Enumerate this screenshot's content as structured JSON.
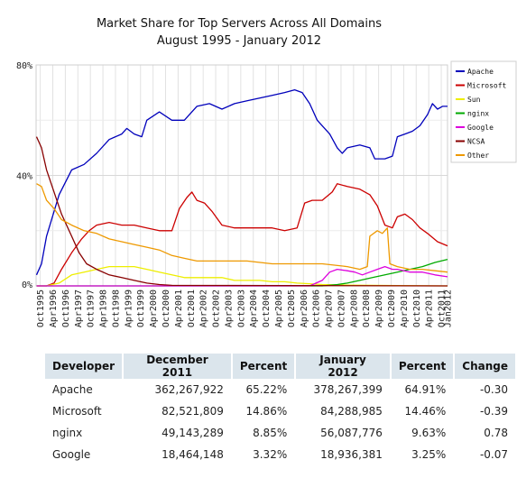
{
  "chart_data": {
    "type": "line",
    "title": "Market Share for Top Servers Across All Domains",
    "subtitle": "August 1995 - January 2012",
    "y_ticks": [
      "0%",
      "40%",
      "80%"
    ],
    "ylim": [
      0,
      80
    ],
    "x_ticks": [
      "Oct1995",
      "Apr1996",
      "Oct1996",
      "Apr1997",
      "Oct1997",
      "Apr1998",
      "Oct1998",
      "Apr1999",
      "Oct1999",
      "Apr2000",
      "Oct2000",
      "Apr2001",
      "Oct2001",
      "Apr2002",
      "Oct2002",
      "Apr2003",
      "Oct2003",
      "Apr2004",
      "Oct2004",
      "Apr2005",
      "Oct2005",
      "Apr2006",
      "Oct2006",
      "Apr2007",
      "Oct2007",
      "Apr2008",
      "Oct2008",
      "Apr2009",
      "Oct2009",
      "Apr2010",
      "Oct2010",
      "Apr2011",
      "Oct2011",
      "Jan2012"
    ],
    "x_range": [
      "1995-08",
      "2012-01"
    ],
    "grid": true,
    "legend_position": "right",
    "series": [
      {
        "name": "Apache",
        "color": "#0000bb",
        "points": [
          [
            1995.6,
            4
          ],
          [
            1995.8,
            8
          ],
          [
            1996.0,
            18
          ],
          [
            1996.5,
            33
          ],
          [
            1997.0,
            42
          ],
          [
            1997.5,
            44
          ],
          [
            1998.0,
            48
          ],
          [
            1998.5,
            53
          ],
          [
            1999.0,
            55
          ],
          [
            1999.2,
            57
          ],
          [
            1999.5,
            55
          ],
          [
            1999.8,
            54
          ],
          [
            2000.0,
            60
          ],
          [
            2000.5,
            63
          ],
          [
            2001.0,
            60
          ],
          [
            2001.5,
            60
          ],
          [
            2002.0,
            65
          ],
          [
            2002.5,
            66
          ],
          [
            2003.0,
            64
          ],
          [
            2003.5,
            66
          ],
          [
            2004.0,
            67
          ],
          [
            2004.5,
            68
          ],
          [
            2005.0,
            69
          ],
          [
            2005.5,
            70
          ],
          [
            2005.9,
            71
          ],
          [
            2006.2,
            70
          ],
          [
            2006.5,
            66
          ],
          [
            2006.8,
            60
          ],
          [
            2007.0,
            58
          ],
          [
            2007.3,
            55
          ],
          [
            2007.6,
            50
          ],
          [
            2007.8,
            48
          ],
          [
            2008.0,
            50
          ],
          [
            2008.5,
            51
          ],
          [
            2008.9,
            50
          ],
          [
            2009.1,
            46
          ],
          [
            2009.5,
            46
          ],
          [
            2009.8,
            47
          ],
          [
            2010.0,
            54
          ],
          [
            2010.3,
            55
          ],
          [
            2010.6,
            56
          ],
          [
            2010.9,
            58
          ],
          [
            2011.2,
            62
          ],
          [
            2011.4,
            66
          ],
          [
            2011.6,
            64
          ],
          [
            2011.8,
            65
          ],
          [
            2012.0,
            65
          ]
        ]
      },
      {
        "name": "Microsoft",
        "color": "#cc0000",
        "points": [
          [
            1995.6,
            0
          ],
          [
            1996.0,
            0
          ],
          [
            1996.3,
            1
          ],
          [
            1996.6,
            6
          ],
          [
            1997.0,
            12
          ],
          [
            1997.4,
            17
          ],
          [
            1997.7,
            20
          ],
          [
            1998.0,
            22
          ],
          [
            1998.5,
            23
          ],
          [
            1999.0,
            22
          ],
          [
            1999.5,
            22
          ],
          [
            2000.0,
            21
          ],
          [
            2000.5,
            20
          ],
          [
            2001.0,
            20
          ],
          [
            2001.3,
            28
          ],
          [
            2001.6,
            32
          ],
          [
            2001.8,
            34
          ],
          [
            2002.0,
            31
          ],
          [
            2002.3,
            30
          ],
          [
            2002.6,
            27
          ],
          [
            2003.0,
            22
          ],
          [
            2003.5,
            21
          ],
          [
            2004.0,
            21
          ],
          [
            2004.5,
            21
          ],
          [
            2005.0,
            21
          ],
          [
            2005.5,
            20
          ],
          [
            2006.0,
            21
          ],
          [
            2006.3,
            30
          ],
          [
            2006.6,
            31
          ],
          [
            2007.0,
            31
          ],
          [
            2007.4,
            34
          ],
          [
            2007.6,
            37
          ],
          [
            2008.0,
            36
          ],
          [
            2008.5,
            35
          ],
          [
            2008.9,
            33
          ],
          [
            2009.2,
            29
          ],
          [
            2009.5,
            22
          ],
          [
            2009.8,
            21
          ],
          [
            2010.0,
            25
          ],
          [
            2010.3,
            26
          ],
          [
            2010.6,
            24
          ],
          [
            2010.9,
            21
          ],
          [
            2011.2,
            19
          ],
          [
            2011.6,
            16
          ],
          [
            2012.0,
            14.5
          ]
        ]
      },
      {
        "name": "Sun",
        "color": "#eeee00",
        "points": [
          [
            1995.6,
            0
          ],
          [
            1996.0,
            0
          ],
          [
            1996.5,
            1
          ],
          [
            1997.0,
            4
          ],
          [
            1997.5,
            5
          ],
          [
            1998.0,
            6
          ],
          [
            1998.5,
            7
          ],
          [
            1999.0,
            7
          ],
          [
            1999.5,
            7
          ],
          [
            2000.0,
            6
          ],
          [
            2000.5,
            5
          ],
          [
            2001.0,
            4
          ],
          [
            2001.5,
            3
          ],
          [
            2002.0,
            3
          ],
          [
            2002.5,
            3
          ],
          [
            2003.0,
            3
          ],
          [
            2003.5,
            2
          ],
          [
            2004.0,
            2
          ],
          [
            2004.5,
            2
          ],
          [
            2005.0,
            1.5
          ],
          [
            2005.5,
            1.5
          ],
          [
            2006.0,
            1
          ],
          [
            2006.5,
            0.8
          ],
          [
            2007.0,
            0.5
          ],
          [
            2008.0,
            0.3
          ],
          [
            2009.0,
            0.2
          ],
          [
            2010.0,
            0.1
          ],
          [
            2012.0,
            0
          ]
        ]
      },
      {
        "name": "nginx",
        "color": "#00aa00",
        "points": [
          [
            1995.6,
            0
          ],
          [
            2007.0,
            0
          ],
          [
            2007.6,
            0.5
          ],
          [
            2008.0,
            1
          ],
          [
            2008.5,
            2
          ],
          [
            2009.0,
            3
          ],
          [
            2009.5,
            4
          ],
          [
            2010.0,
            5
          ],
          [
            2010.5,
            6
          ],
          [
            2011.0,
            7
          ],
          [
            2011.5,
            8.5
          ],
          [
            2012.0,
            9.6
          ]
        ]
      },
      {
        "name": "Google",
        "color": "#dd00dd",
        "points": [
          [
            1995.6,
            0
          ],
          [
            2006.5,
            0
          ],
          [
            2007.0,
            2
          ],
          [
            2007.3,
            5
          ],
          [
            2007.6,
            6
          ],
          [
            2008.0,
            5.5
          ],
          [
            2008.3,
            5
          ],
          [
            2008.6,
            4
          ],
          [
            2008.9,
            5
          ],
          [
            2009.2,
            6
          ],
          [
            2009.5,
            7
          ],
          [
            2009.8,
            6
          ],
          [
            2010.0,
            6
          ],
          [
            2010.5,
            5
          ],
          [
            2011.0,
            5
          ],
          [
            2011.5,
            4
          ],
          [
            2012.0,
            3.3
          ]
        ]
      },
      {
        "name": "NCSA",
        "color": "#880000",
        "points": [
          [
            1995.6,
            54
          ],
          [
            1995.8,
            50
          ],
          [
            1996.0,
            42
          ],
          [
            1996.3,
            34
          ],
          [
            1996.6,
            26
          ],
          [
            1997.0,
            18
          ],
          [
            1997.3,
            12
          ],
          [
            1997.6,
            8
          ],
          [
            1998.0,
            6
          ],
          [
            1998.5,
            4
          ],
          [
            1999.0,
            3
          ],
          [
            1999.5,
            2
          ],
          [
            2000.0,
            1
          ],
          [
            2000.5,
            0.5
          ],
          [
            2001.0,
            0.2
          ],
          [
            2012.0,
            0
          ]
        ]
      },
      {
        "name": "Other",
        "color": "#ee9900",
        "points": [
          [
            1995.6,
            37
          ],
          [
            1995.8,
            36
          ],
          [
            1996.0,
            31
          ],
          [
            1996.3,
            28
          ],
          [
            1996.6,
            24
          ],
          [
            1997.0,
            22
          ],
          [
            1997.5,
            20
          ],
          [
            1998.0,
            19
          ],
          [
            1998.5,
            17
          ],
          [
            1999.0,
            16
          ],
          [
            1999.5,
            15
          ],
          [
            2000.0,
            14
          ],
          [
            2000.5,
            13
          ],
          [
            2001.0,
            11
          ],
          [
            2001.5,
            10
          ],
          [
            2002.0,
            9
          ],
          [
            2003.0,
            9
          ],
          [
            2004.0,
            9
          ],
          [
            2005.0,
            8
          ],
          [
            2006.0,
            8
          ],
          [
            2007.0,
            8
          ],
          [
            2008.0,
            7
          ],
          [
            2008.5,
            6
          ],
          [
            2008.8,
            7
          ],
          [
            2008.9,
            18
          ],
          [
            2009.2,
            20
          ],
          [
            2009.4,
            19
          ],
          [
            2009.6,
            21
          ],
          [
            2009.7,
            8
          ],
          [
            2010.0,
            7
          ],
          [
            2010.5,
            6
          ],
          [
            2011.0,
            6
          ],
          [
            2011.5,
            5.5
          ],
          [
            2012.0,
            5
          ]
        ]
      }
    ]
  },
  "table": {
    "headers": [
      "Developer",
      "December 2011",
      "Percent",
      "January 2012",
      "Percent",
      "Change"
    ],
    "rows": [
      [
        "Apache",
        "362,267,922",
        "65.22%",
        "378,267,399",
        "64.91%",
        "-0.30"
      ],
      [
        "Microsoft",
        "82,521,809",
        "14.86%",
        "84,288,985",
        "14.46%",
        "-0.39"
      ],
      [
        "nginx",
        "49,143,289",
        "8.85%",
        "56,087,776",
        "9.63%",
        "0.78"
      ],
      [
        "Google",
        "18,464,148",
        "3.32%",
        "18,936,381",
        "3.25%",
        "-0.07"
      ]
    ]
  }
}
